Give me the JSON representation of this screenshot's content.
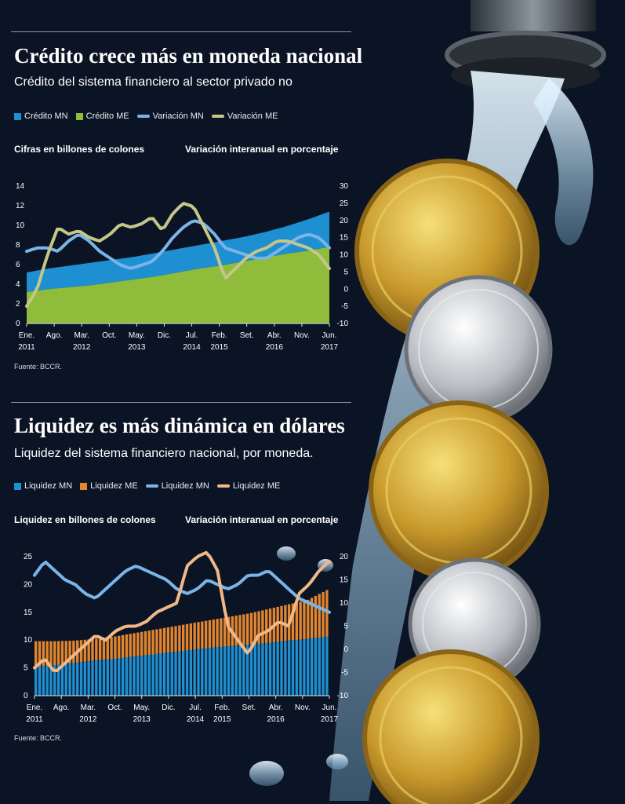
{
  "charts": [
    {
      "title": "Crédito crece más en moneda nacional",
      "subtitle": "Crédito del sistema financiero al sector privado no",
      "left_axis_title": "Cifras en billones de colones",
      "right_axis_title": "Variación interanual en porcentaje",
      "source": "Fuente: BCCR.",
      "legend": [
        {
          "label": "Crédito MN",
          "kind": "box",
          "color": "#1e8fd0"
        },
        {
          "label": "Crédito ME",
          "kind": "box",
          "color": "#8fbc3a"
        },
        {
          "label": "Variación MN",
          "kind": "line",
          "color": "#7ab4e8"
        },
        {
          "label": "Variación ME",
          "kind": "line",
          "color": "#c6c58a"
        }
      ],
      "x_ticks": [
        {
          "line1": "Ene.",
          "line2": "2011"
        },
        {
          "line1": "Ago.",
          "line2": ""
        },
        {
          "line1": "Mar.",
          "line2": "2012"
        },
        {
          "line1": "Oct.",
          "line2": ""
        },
        {
          "line1": "May.",
          "line2": "2013"
        },
        {
          "line1": "Dic.",
          "line2": ""
        },
        {
          "line1": "Jul.",
          "line2": "2014"
        },
        {
          "line1": "Feb.",
          "line2": "2015"
        },
        {
          "line1": "Set.",
          "line2": ""
        },
        {
          "line1": "Abr.",
          "line2": "2016"
        },
        {
          "line1": "Nov.",
          "line2": ""
        },
        {
          "line1": "Jun.",
          "line2": "2017"
        }
      ],
      "left_ticks": [
        "0",
        "2",
        "4",
        "6",
        "8",
        "10",
        "12",
        "14"
      ],
      "right_ticks": [
        "-10",
        "-5",
        "0",
        "5",
        "10",
        "15",
        "20",
        "25",
        "30"
      ]
    },
    {
      "title": "Liquidez es más dinámica en dólares",
      "subtitle": "Liquidez del sistema financiero nacional, por moneda.",
      "left_axis_title": "Liquidez en billones de colones",
      "right_axis_title": "Variación interanual en porcentaje",
      "source": "Fuente: BCCR.",
      "legend": [
        {
          "label": "Liquidez MN",
          "kind": "box",
          "color": "#1e8fd0"
        },
        {
          "label": "Liquidez ME",
          "kind": "box",
          "color": "#e2852f"
        },
        {
          "label": "Liquidez MN",
          "kind": "line",
          "color": "#7ab4e8"
        },
        {
          "label": "Liquidez ME",
          "kind": "line",
          "color": "#f0b888"
        }
      ],
      "x_ticks": [
        {
          "line1": "Ene.",
          "line2": "2011"
        },
        {
          "line1": "Ago.",
          "line2": ""
        },
        {
          "line1": "Mar.",
          "line2": "2012"
        },
        {
          "line1": "Oct.",
          "line2": ""
        },
        {
          "line1": "May.",
          "line2": "2013"
        },
        {
          "line1": "Dic.",
          "line2": ""
        },
        {
          "line1": "Jul.",
          "line2": "2014"
        },
        {
          "line1": "Feb.",
          "line2": "2015"
        },
        {
          "line1": "Set.",
          "line2": ""
        },
        {
          "line1": "Abr.",
          "line2": "2016"
        },
        {
          "line1": "Nov.",
          "line2": ""
        },
        {
          "line1": "Jun.",
          "line2": "2017"
        }
      ],
      "left_ticks": [
        "0",
        "5",
        "10",
        "15",
        "20",
        "25"
      ],
      "right_ticks": [
        "-10",
        "-5",
        "0",
        "5",
        "10",
        "15",
        "20"
      ]
    }
  ],
  "chart_data": [
    {
      "type": "area",
      "title": "Crédito crece más en moneda nacional",
      "x_start": "2011-01",
      "x_end": "2017-06",
      "ylim_left": [
        0,
        14
      ],
      "ylim_right": [
        -10,
        30
      ],
      "stacked_areas": [
        {
          "name": "Crédito ME",
          "axis": "left",
          "color": "#8fbc3a",
          "values": [
            3.2,
            3.5,
            3.7,
            3.9,
            4.2,
            4.5,
            4.8,
            5.2,
            5.6,
            5.9,
            6.3,
            6.7,
            7.1,
            7.4,
            7.8
          ]
        },
        {
          "name": "Crédito MN",
          "axis": "left_total",
          "color": "#1e8fd0",
          "values": [
            5.2,
            5.6,
            5.9,
            6.2,
            6.5,
            6.8,
            7.2,
            7.6,
            8.0,
            8.4,
            8.8,
            9.3,
            9.9,
            10.6,
            11.4
          ]
        }
      ],
      "lines": [
        {
          "name": "Variación MN",
          "axis": "right",
          "color": "#7ab4e8",
          "values": [
            11,
            12,
            12,
            11,
            14,
            16,
            14,
            11,
            9,
            7,
            6,
            7,
            8,
            11,
            15,
            18,
            20,
            19,
            16,
            12,
            11,
            10,
            9,
            9,
            11,
            13,
            15,
            16,
            15,
            12
          ]
        },
        {
          "name": "Variación ME",
          "axis": "right",
          "color": "#c6c58a",
          "values": [
            -5,
            0,
            10,
            18,
            16,
            17,
            15,
            14,
            16,
            19,
            18,
            19,
            21,
            17,
            22,
            25,
            24,
            18,
            12,
            3,
            6,
            9,
            11,
            12,
            14,
            14,
            13,
            12,
            10,
            6
          ]
        }
      ]
    },
    {
      "type": "bar",
      "title": "Liquidez es más dinámica en dólares",
      "x_start": "2011-01",
      "x_end": "2017-06",
      "ylim_left": [
        0,
        25
      ],
      "ylim_right": [
        -10,
        20
      ],
      "stacked_bars": [
        {
          "name": "Liquidez MN",
          "axis": "left",
          "color": "#1e8fd0",
          "values": [
            5.2,
            5.5,
            5.9,
            6.3,
            6.6,
            7.0,
            7.4,
            7.8,
            8.2,
            8.6,
            8.9,
            9.2,
            9.5,
            9.9,
            10.2,
            10.6
          ]
        },
        {
          "name": "Liquidez ME",
          "axis": "left_total",
          "color": "#e2852f",
          "values": [
            9.8,
            9.8,
            9.9,
            10.2,
            10.6,
            11.2,
            11.8,
            12.4,
            13.0,
            13.6,
            14.2,
            14.8,
            15.6,
            16.4,
            17.2,
            19.0
          ]
        }
      ],
      "lines": [
        {
          "name": "Liquidez MN",
          "axis": "right",
          "color": "#7ab4e8",
          "values": [
            16,
            19,
            17,
            15,
            14,
            12,
            11,
            13,
            15,
            17,
            18,
            17,
            16,
            15,
            13,
            12,
            13,
            15,
            14,
            13,
            14,
            16,
            16,
            17,
            15,
            13,
            11,
            10,
            9,
            8
          ]
        },
        {
          "name": "Liquidez ME",
          "axis": "right",
          "color": "#f0b888",
          "values": [
            -4,
            -2,
            -5,
            -3,
            -1,
            1,
            3,
            2,
            4,
            5,
            5,
            6,
            8,
            9,
            10,
            18,
            20,
            21,
            17,
            5,
            2,
            -1,
            3,
            4,
            6,
            5,
            12,
            14,
            17,
            19
          ]
        }
      ]
    }
  ]
}
